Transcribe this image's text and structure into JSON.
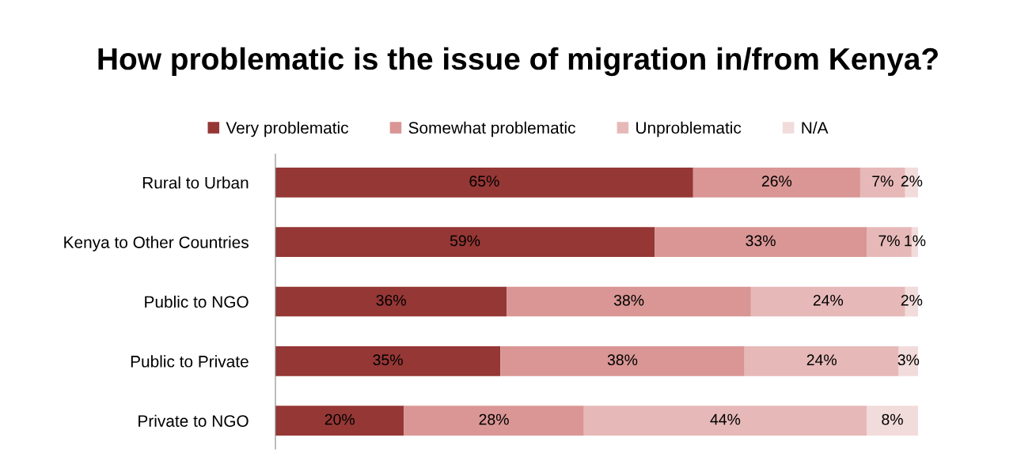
{
  "chart_data": {
    "type": "bar",
    "orientation": "horizontal",
    "stacked": true,
    "title": "How problematic is the issue of migration in/from Kenya?",
    "categories": [
      "Rural to Urban",
      "Kenya to Other Countries",
      "Public to NGO",
      "Public to Private",
      "Private to NGO"
    ],
    "series": [
      {
        "name": "Very problematic",
        "color": "#953735",
        "values": [
          65,
          59,
          36,
          35,
          20
        ],
        "value_labels": [
          "65%",
          "59%",
          "36%",
          "35%",
          "20%"
        ]
      },
      {
        "name": "Somewhat problematic",
        "color": "#d99694",
        "values": [
          26,
          33,
          38,
          38,
          28
        ],
        "value_labels": [
          "26%",
          "33%",
          "38%",
          "38%",
          "28%"
        ]
      },
      {
        "name": "Unproblematic",
        "color": "#e6b9b8",
        "values": [
          7,
          7,
          24,
          24,
          44
        ],
        "value_labels": [
          "7%",
          "7%",
          "24%",
          "24%",
          "44%"
        ]
      },
      {
        "name": "N/A",
        "color": "#f2dcdb",
        "values": [
          2,
          1,
          2,
          3,
          8
        ],
        "value_labels": [
          "2%",
          "1%",
          "2%",
          "3%",
          "8%"
        ]
      }
    ],
    "legend": "top",
    "grid": false
  }
}
